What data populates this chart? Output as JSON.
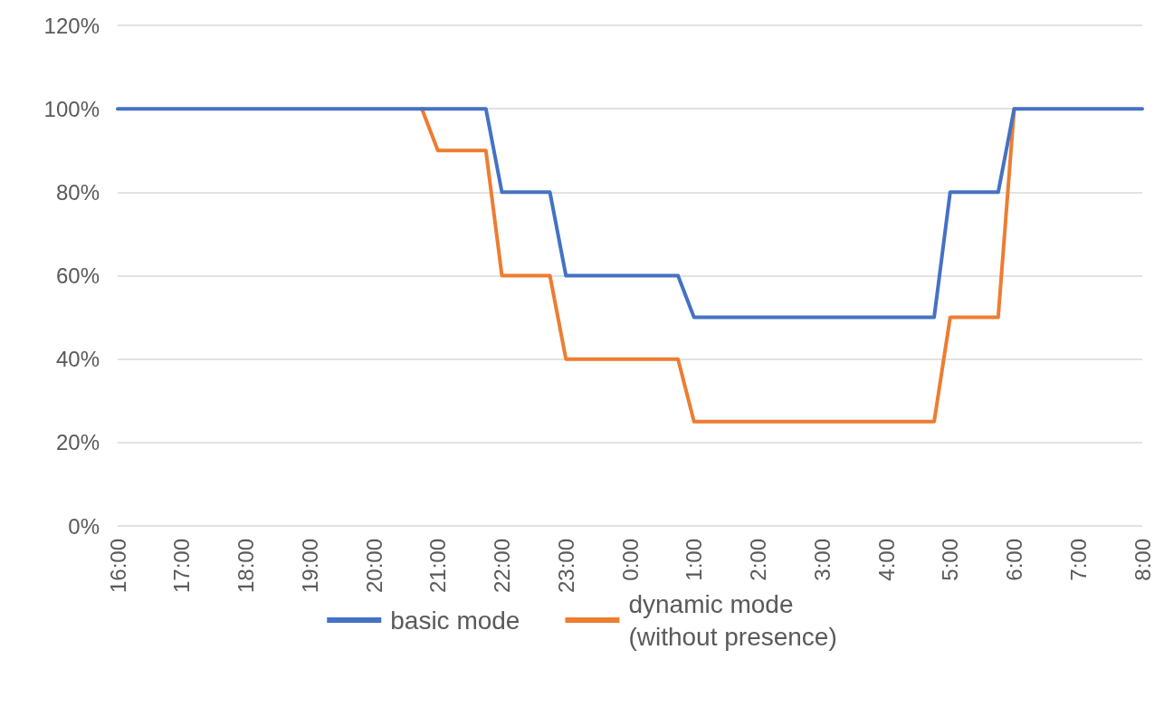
{
  "chart_data": {
    "type": "line",
    "categories": [
      "16:00",
      null,
      null,
      null,
      "17:00",
      null,
      null,
      null,
      "18:00",
      null,
      null,
      null,
      "19:00",
      null,
      null,
      null,
      "20:00",
      null,
      null,
      null,
      "21:00",
      null,
      null,
      null,
      "22:00",
      null,
      null,
      null,
      "23:00",
      null,
      null,
      null,
      "0:00",
      null,
      null,
      null,
      "1:00",
      null,
      null,
      null,
      "2:00",
      null,
      null,
      null,
      "3:00",
      null,
      null,
      null,
      "4:00",
      null,
      null,
      null,
      "5:00",
      null,
      null,
      null,
      "6:00",
      null,
      null,
      null,
      "7:00",
      null,
      null,
      null,
      "8:00"
    ],
    "ylim": [
      0,
      120
    ],
    "yticks": [
      {
        "value": 0,
        "label": "0%"
      },
      {
        "value": 20,
        "label": "20%"
      },
      {
        "value": 40,
        "label": "40%"
      },
      {
        "value": 60,
        "label": "60%"
      },
      {
        "value": 80,
        "label": "80%"
      },
      {
        "value": 100,
        "label": "100%"
      },
      {
        "value": 120,
        "label": "120%"
      }
    ],
    "grid": "y",
    "legend": "bottom",
    "marker": "none",
    "line_style": "solid",
    "series": [
      {
        "name": "basic mode",
        "color": "#4472c4",
        "values": [
          100,
          100,
          100,
          100,
          100,
          100,
          100,
          100,
          100,
          100,
          100,
          100,
          100,
          100,
          100,
          100,
          100,
          100,
          100,
          100,
          100,
          100,
          100,
          100,
          80,
          80,
          80,
          80,
          60,
          60,
          60,
          60,
          60,
          60,
          60,
          60,
          50,
          50,
          50,
          50,
          50,
          50,
          50,
          50,
          50,
          50,
          50,
          50,
          50,
          50,
          50,
          50,
          80,
          80,
          80,
          80,
          100,
          100,
          100,
          100,
          100,
          100,
          100,
          100,
          100
        ]
      },
      {
        "name": "dynamic mode\n(without presence)",
        "color": "#ed7d31",
        "values": [
          null,
          null,
          null,
          null,
          null,
          null,
          null,
          null,
          null,
          null,
          null,
          null,
          null,
          null,
          null,
          null,
          null,
          null,
          null,
          100,
          90,
          90,
          90,
          90,
          60,
          60,
          60,
          60,
          40,
          40,
          40,
          40,
          40,
          40,
          40,
          40,
          25,
          25,
          25,
          25,
          25,
          25,
          25,
          25,
          25,
          25,
          25,
          25,
          25,
          25,
          25,
          25,
          50,
          50,
          50,
          50,
          100,
          null,
          null,
          null,
          null,
          null,
          null,
          null,
          null
        ]
      }
    ]
  }
}
